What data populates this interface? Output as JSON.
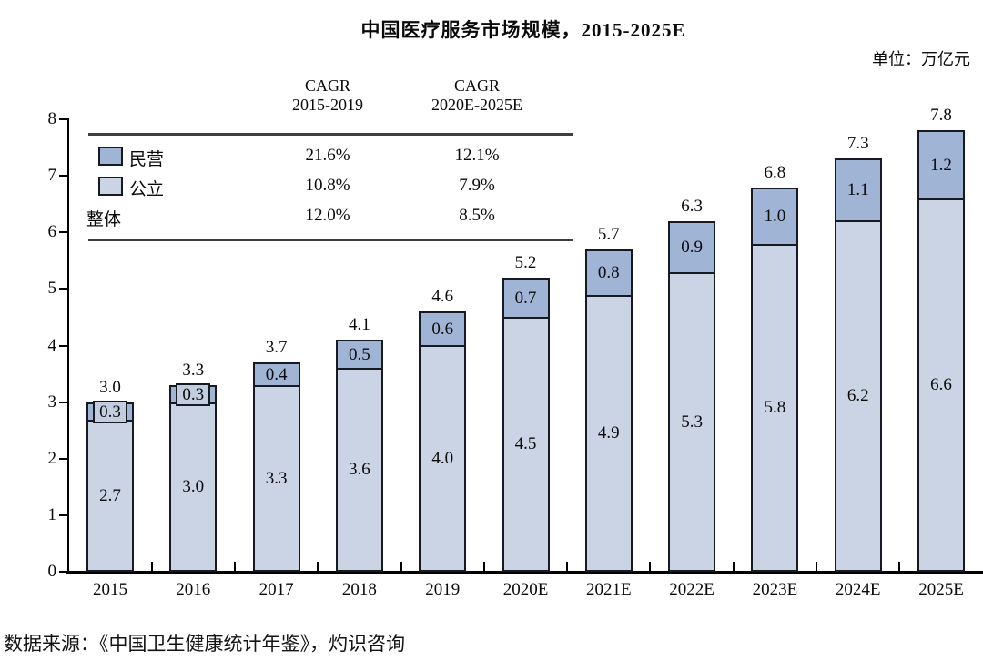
{
  "title": "中国医疗服务市场规模，2015-2025E",
  "unit_label": "单位：万亿元",
  "source": "数据来源：《中国卫生健康统计年鉴》，灼识咨询",
  "colors": {
    "private": "#a0b4d6",
    "public": "#cad4e4",
    "outline": "#171a22"
  },
  "cagr_table": {
    "col1_header_line1": "CAGR",
    "col1_header_line2": "2015-2019",
    "col2_header_line1": "CAGR",
    "col2_header_line2": "2020E-2025E",
    "rows": [
      {
        "label": "民营",
        "col1": "21.6%",
        "col2": "12.1%"
      },
      {
        "label": "公立",
        "col1": "10.8%",
        "col2": "7.9%"
      },
      {
        "label": "整体",
        "col1": "12.0%",
        "col2": "8.5%"
      }
    ]
  },
  "chart_data": {
    "type": "bar",
    "stacked": true,
    "title": "中国医疗服务市场规模，2015-2025E",
    "unit": "万亿元",
    "categories": [
      "2015",
      "2016",
      "2017",
      "2018",
      "2019",
      "2020E",
      "2021E",
      "2022E",
      "2023E",
      "2024E",
      "2025E"
    ],
    "series": [
      {
        "name": "公立",
        "color": "#cad4e4",
        "values": [
          2.7,
          3.0,
          3.3,
          3.6,
          4.0,
          4.5,
          4.9,
          5.3,
          5.8,
          6.2,
          6.6
        ],
        "labels": [
          "2.7",
          "3.0",
          "3.3",
          "3.6",
          "4.0",
          "4.5",
          "4.9",
          "5.3",
          "5.8",
          "6.2",
          "6.6"
        ]
      },
      {
        "name": "民营",
        "color": "#a0b4d6",
        "values": [
          0.3,
          0.3,
          0.4,
          0.5,
          0.6,
          0.7,
          0.8,
          0.9,
          1.0,
          1.1,
          1.2
        ],
        "labels": [
          "0.3",
          "0.3",
          "0.4",
          "0.5",
          "0.6",
          "0.7",
          "0.8",
          "0.9",
          "1.0",
          "1.1",
          "1.2"
        ]
      }
    ],
    "totals": [
      "3.0",
      "3.3",
      "3.7",
      "4.1",
      "4.6",
      "5.2",
      "5.7",
      "6.3",
      "6.8",
      "7.3",
      "7.8"
    ],
    "cagr": {
      "民营": {
        "2015-2019": "21.6%",
        "2020E-2025E": "12.1%"
      },
      "公立": {
        "2015-2019": "10.8%",
        "2020E-2025E": "7.9%"
      },
      "整体": {
        "2015-2019": "12.0%",
        "2020E-2025E": "8.5%"
      }
    },
    "xlabel": "",
    "ylabel": "",
    "ylim": [
      0,
      8
    ],
    "yticks": [
      0,
      1,
      2,
      3,
      4,
      5,
      6,
      7,
      8
    ],
    "grid": false,
    "legend_position": "upper-left"
  }
}
